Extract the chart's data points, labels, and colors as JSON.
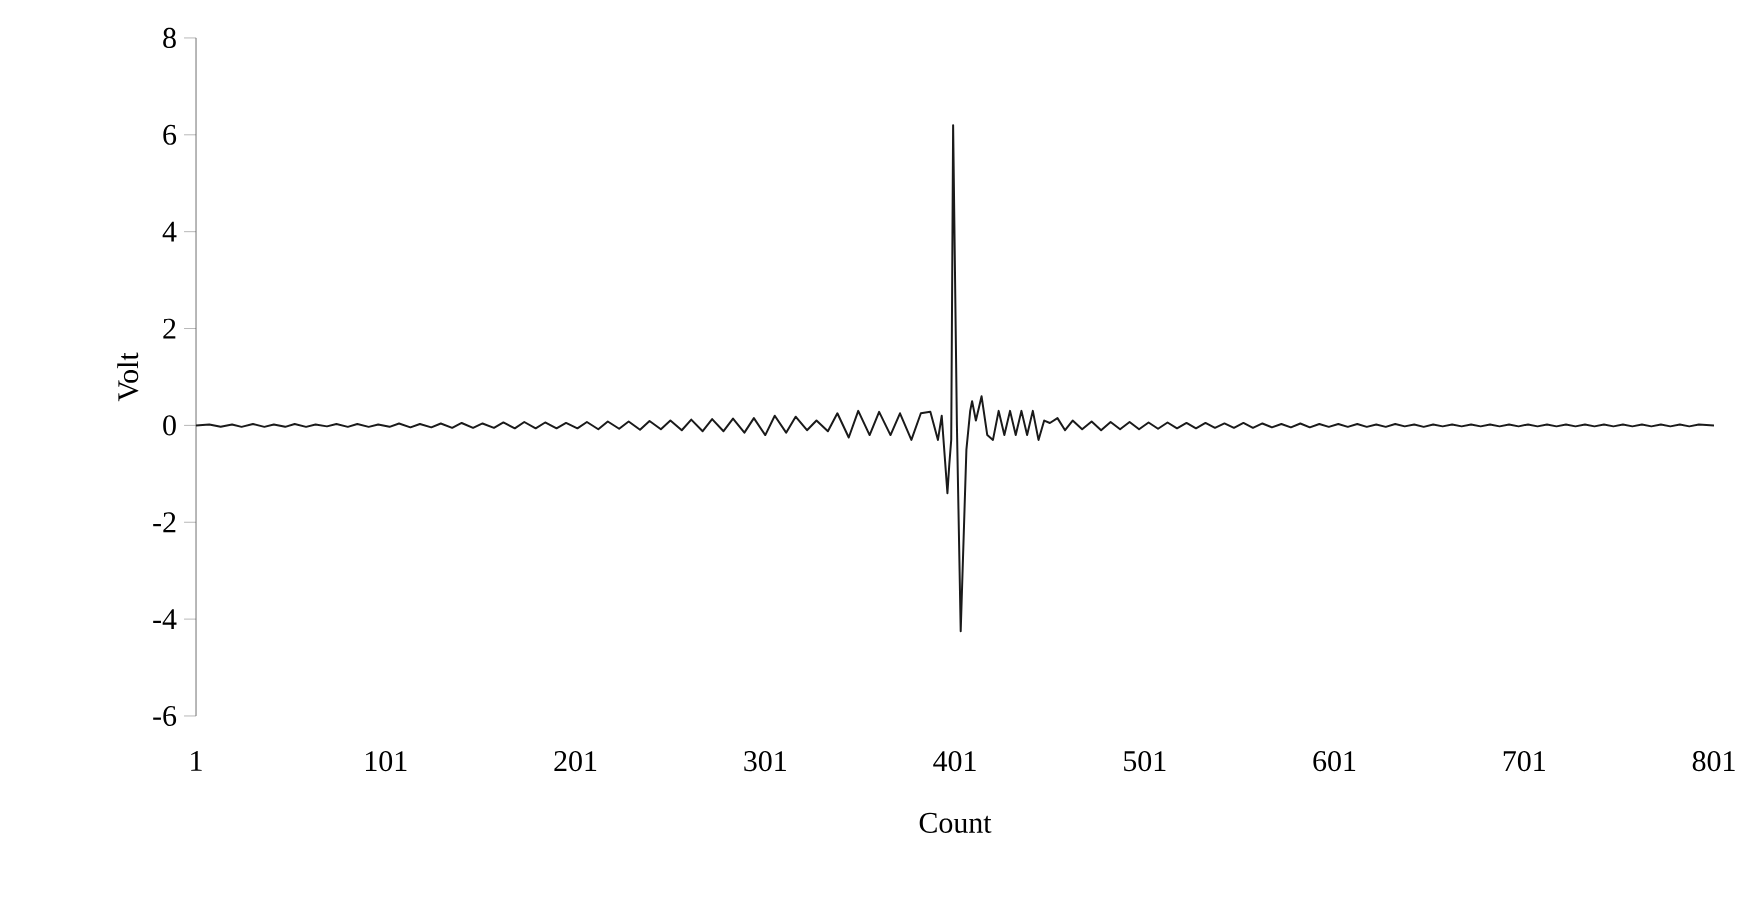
{
  "chart_data": {
    "type": "line",
    "xlabel": "Count",
    "ylabel": "Volt",
    "color": "#1a1a1a",
    "xlim": [
      1,
      801
    ],
    "ylim": [
      -6,
      8
    ],
    "xticks": [
      1,
      101,
      201,
      301,
      401,
      501,
      601,
      701,
      801
    ],
    "yticks": [
      -6,
      -4,
      -2,
      0,
      2,
      4,
      6,
      8
    ],
    "x": [
      1,
      8,
      14,
      20,
      25,
      31,
      37,
      42,
      48,
      53,
      59,
      64,
      70,
      75,
      81,
      86,
      92,
      97,
      103,
      108,
      114,
      119,
      125,
      130,
      136,
      141,
      147,
      152,
      158,
      163,
      169,
      174,
      180,
      185,
      191,
      196,
      202,
      207,
      213,
      218,
      224,
      229,
      235,
      240,
      246,
      251,
      257,
      262,
      268,
      273,
      279,
      284,
      290,
      295,
      301,
      306,
      312,
      317,
      323,
      328,
      334,
      339,
      345,
      350,
      356,
      361,
      367,
      372,
      378,
      383,
      388,
      392,
      394,
      397,
      398,
      399,
      400,
      402,
      404,
      407,
      409,
      410,
      412,
      415,
      418,
      421,
      424,
      427,
      430,
      433,
      436,
      439,
      442,
      445,
      448,
      451,
      455,
      459,
      463,
      468,
      473,
      478,
      483,
      488,
      493,
      498,
      503,
      508,
      513,
      518,
      523,
      528,
      533,
      538,
      543,
      548,
      553,
      558,
      563,
      568,
      573,
      578,
      583,
      588,
      593,
      598,
      603,
      608,
      613,
      618,
      623,
      628,
      633,
      638,
      643,
      648,
      653,
      658,
      663,
      668,
      673,
      678,
      683,
      688,
      693,
      698,
      703,
      708,
      713,
      718,
      723,
      728,
      733,
      738,
      743,
      748,
      753,
      758,
      763,
      768,
      773,
      778,
      783,
      788,
      793,
      801
    ],
    "values": [
      0.0,
      0.02,
      -0.03,
      0.02,
      -0.03,
      0.03,
      -0.03,
      0.02,
      -0.03,
      0.03,
      -0.03,
      0.02,
      -0.02,
      0.03,
      -0.03,
      0.03,
      -0.03,
      0.02,
      -0.03,
      0.04,
      -0.04,
      0.03,
      -0.04,
      0.04,
      -0.05,
      0.05,
      -0.05,
      0.04,
      -0.05,
      0.06,
      -0.06,
      0.07,
      -0.06,
      0.06,
      -0.06,
      0.05,
      -0.06,
      0.07,
      -0.08,
      0.08,
      -0.07,
      0.08,
      -0.09,
      0.09,
      -0.08,
      0.1,
      -0.1,
      0.12,
      -0.12,
      0.13,
      -0.12,
      0.14,
      -0.15,
      0.15,
      -0.2,
      0.2,
      -0.15,
      0.18,
      -0.1,
      0.1,
      -0.12,
      0.25,
      -0.25,
      0.3,
      -0.2,
      0.28,
      -0.2,
      0.25,
      -0.3,
      0.25,
      0.28,
      -0.3,
      0.2,
      -1.4,
      -0.8,
      -0.3,
      6.2,
      0,
      -4.25,
      -0.5,
      0.3,
      0.5,
      0.1,
      0.6,
      -0.2,
      -0.3,
      0.3,
      -0.2,
      0.3,
      -0.2,
      0.3,
      -0.2,
      0.3,
      -0.3,
      0.1,
      0.05,
      0.15,
      -0.1,
      0.1,
      -0.08,
      0.08,
      -0.1,
      0.07,
      -0.08,
      0.07,
      -0.08,
      0.06,
      -0.07,
      0.06,
      -0.06,
      0.05,
      -0.06,
      0.05,
      -0.05,
      0.04,
      -0.05,
      0.05,
      -0.05,
      0.04,
      -0.04,
      0.03,
      -0.04,
      0.04,
      -0.04,
      0.03,
      -0.03,
      0.03,
      -0.03,
      0.03,
      -0.03,
      0.02,
      -0.03,
      0.03,
      -0.02,
      0.02,
      -0.03,
      0.02,
      -0.02,
      0.02,
      -0.02,
      0.02,
      -0.02,
      0.02,
      -0.02,
      0.02,
      -0.02,
      0.02,
      -0.02,
      0.02,
      -0.02,
      0.02,
      -0.02,
      0.02,
      -0.02,
      0.02,
      -0.02,
      0.02,
      -0.02,
      0.02,
      -0.02,
      0.02,
      -0.02,
      0.02,
      -0.02,
      0.02,
      0
    ]
  }
}
